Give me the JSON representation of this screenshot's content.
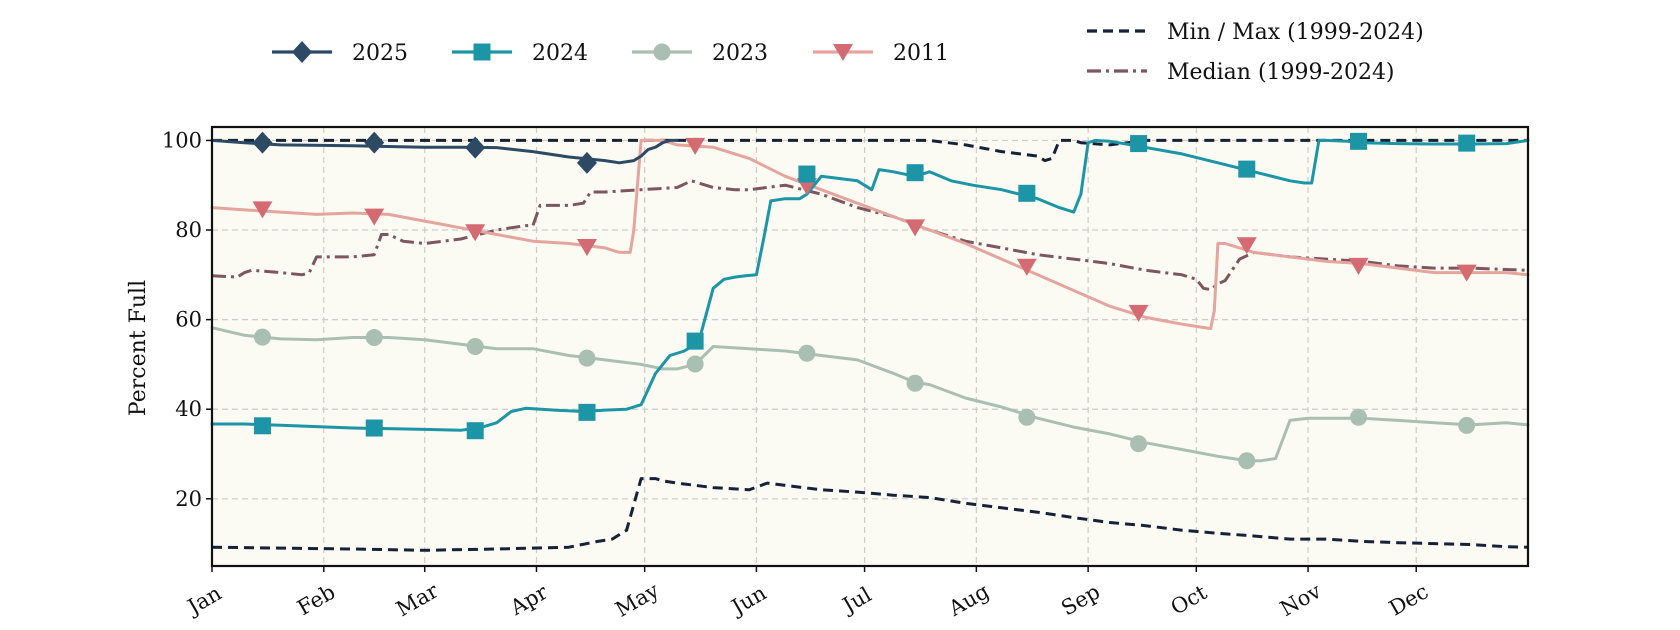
{
  "chart_data": {
    "type": "line",
    "title": "",
    "xlabel": "",
    "ylabel": "Percent Full",
    "x_tick_labels": [
      "Jan",
      "Feb",
      "Mar",
      "Apr",
      "May",
      "Jun",
      "Jul",
      "Aug",
      "Sep",
      "Oct",
      "Nov",
      "Dec"
    ],
    "x_tick_days": [
      1,
      32,
      60,
      91,
      121,
      152,
      182,
      213,
      244,
      274,
      305,
      335
    ],
    "xlim_days": [
      1,
      366
    ],
    "y_ticks": [
      20,
      40,
      60,
      80,
      100
    ],
    "ylim": [
      5,
      103
    ],
    "grid": true,
    "legend_placement": "top",
    "background_fill": "#fbfbf3",
    "series": [
      {
        "name": "2025",
        "color": "#2c4a63",
        "marker": "diamond",
        "style": "solid",
        "x": [
          1,
          10,
          20,
          40,
          60,
          70,
          80,
          90,
          100,
          110,
          114,
          118,
          120,
          122,
          124,
          126,
          128,
          130
        ],
        "y": [
          100,
          99.5,
          99,
          98.8,
          98.5,
          98.5,
          98.4,
          97.5,
          96.3,
          95.5,
          95,
          95.5,
          96.5,
          98,
          98.5,
          99.5,
          100,
          100
        ],
        "marker_x": [
          15,
          46,
          74,
          105
        ],
        "marker_y": [
          99.5,
          99.5,
          98.4,
          95
        ]
      },
      {
        "name": "2024",
        "color": "#1c95a6",
        "marker": "square",
        "style": "solid",
        "x": [
          1,
          10,
          20,
          40,
          60,
          70,
          76,
          80,
          84,
          88,
          96,
          104,
          110,
          116,
          120,
          124,
          128,
          132,
          136,
          140,
          143,
          146,
          149,
          152,
          154,
          156,
          160,
          164,
          166,
          170,
          180,
          184,
          186,
          190,
          196,
          200,
          206,
          212,
          220,
          230,
          236,
          240,
          242,
          244,
          246,
          250,
          256,
          270,
          280,
          290,
          300,
          304,
          306,
          308,
          310,
          316,
          320,
          330,
          340,
          350,
          360,
          366
        ],
        "y": [
          36.7,
          36.7,
          36.4,
          35.8,
          35.5,
          35.3,
          36,
          37,
          39.5,
          40.2,
          39.8,
          39.5,
          39.8,
          40,
          41,
          48,
          52,
          53,
          55,
          67,
          69,
          69.5,
          69.8,
          70,
          78,
          86.5,
          87,
          87,
          88,
          92,
          91,
          89,
          93.5,
          93,
          92,
          93,
          91,
          90,
          89,
          87,
          85,
          84,
          88,
          99.5,
          100,
          99.8,
          99,
          97,
          95,
          93,
          91,
          90.5,
          90.5,
          100,
          100,
          99.8,
          99.5,
          99.3,
          99.2,
          99.2,
          99.3,
          100
        ],
        "marker_x": [
          15,
          46,
          74,
          105,
          135,
          166,
          196,
          227,
          258,
          288,
          319,
          349
        ],
        "marker_y": [
          36.3,
          35.8,
          35.2,
          39.3,
          55.2,
          92.5,
          92.8,
          88.2,
          99.3,
          93.6,
          99.8,
          99.4
        ]
      },
      {
        "name": "2023",
        "color": "#a9bfb2",
        "marker": "circle",
        "style": "solid",
        "x": [
          1,
          10,
          20,
          30,
          40,
          50,
          60,
          70,
          80,
          90,
          100,
          110,
          120,
          126,
          130,
          135,
          140,
          150,
          160,
          170,
          180,
          190,
          196,
          200,
          210,
          220,
          230,
          240,
          250,
          260,
          270,
          280,
          284,
          288,
          292,
          296,
          300,
          305,
          310,
          320,
          330,
          340,
          350,
          360,
          366
        ],
        "y": [
          58.2,
          56.5,
          55.7,
          55.5,
          56,
          56,
          55.5,
          54.5,
          53.5,
          53.5,
          52,
          51,
          50,
          49,
          49,
          50,
          54,
          53.5,
          53,
          52,
          51,
          48,
          46,
          45.5,
          42.5,
          40.5,
          38,
          36,
          34.5,
          32.5,
          31,
          29.5,
          29,
          28.5,
          28.5,
          29,
          37.5,
          38,
          38,
          38,
          37.5,
          37,
          36.5,
          37,
          36.5
        ],
        "marker_x": [
          15,
          46,
          74,
          105,
          135,
          166,
          196,
          227,
          258,
          288,
          319,
          349
        ],
        "marker_y": [
          56.1,
          56,
          54,
          51.4,
          50.1,
          52.5,
          45.8,
          38.2,
          32.3,
          28.5,
          38.2,
          36.4
        ]
      },
      {
        "name": "2011",
        "color": "#e5a59e",
        "marker_color": "#d46a72",
        "marker": "triangle-down",
        "style": "solid",
        "x": [
          1,
          10,
          20,
          30,
          40,
          50,
          60,
          70,
          80,
          90,
          100,
          110,
          114,
          117,
          118,
          120,
          122,
          126,
          130,
          140,
          150,
          160,
          170,
          180,
          190,
          200,
          210,
          220,
          230,
          240,
          250,
          260,
          270,
          278,
          279,
          280,
          282,
          286,
          290,
          300,
          310,
          320,
          330,
          340,
          350,
          360,
          366
        ],
        "y": [
          85,
          84.5,
          84,
          83.5,
          83.8,
          83.5,
          82,
          80.5,
          79,
          77.5,
          77,
          76,
          75,
          75,
          80,
          100,
          100,
          100,
          99,
          98.5,
          96,
          92,
          89,
          86,
          83,
          80,
          77,
          73.5,
          70,
          66.5,
          63,
          60.5,
          59,
          58,
          62,
          77,
          77,
          76,
          75,
          74,
          73,
          72.5,
          71.5,
          70.5,
          70.5,
          70.5,
          70
        ],
        "marker_x": [
          15,
          46,
          74,
          105,
          135,
          166,
          196,
          227,
          258,
          288,
          319,
          349
        ],
        "marker_y": [
          84.6,
          83,
          79.5,
          76.2,
          98.8,
          89.8,
          80.6,
          71.8,
          61.5,
          76.6,
          72,
          70.5
        ]
      },
      {
        "name": "Min / Max (1999-2024)",
        "color": "#152238",
        "style": "dashed",
        "x": [
          1,
          20,
          40,
          60,
          80,
          100,
          108,
          112,
          114,
          116,
          120,
          122,
          124,
          126,
          130,
          140,
          150,
          155,
          160,
          165,
          170,
          180,
          190,
          200,
          210,
          220,
          230,
          240,
          250,
          260,
          270,
          280,
          290,
          300,
          310,
          320,
          330,
          340,
          350,
          360,
          366
        ],
        "y": [
          9.2,
          9,
          8.8,
          8.5,
          8.8,
          9.2,
          10.5,
          11,
          12,
          13,
          24.5,
          24.5,
          24.5,
          24,
          23.5,
          22.5,
          22,
          23.5,
          23,
          22.5,
          22,
          21.5,
          20.8,
          20.3,
          19,
          18,
          17,
          15.8,
          14.7,
          14,
          13,
          12.3,
          11.7,
          11,
          11,
          10.5,
          10.2,
          10,
          9.8,
          9.3,
          9.2
        ],
        "x_upper": [
          1,
          200,
          210,
          220,
          230,
          232,
          234,
          236,
          240,
          242,
          250,
          260,
          366
        ],
        "y_upper": [
          100,
          100,
          99,
          97.5,
          96.5,
          95.5,
          96,
          100,
          100,
          99.5,
          99,
          100,
          100
        ]
      },
      {
        "name": "Median (1999-2024)",
        "color": "#7d5660",
        "style": "dashdot",
        "x": [
          1,
          8,
          10,
          12,
          20,
          26,
          28,
          30,
          40,
          46,
          48,
          50,
          54,
          60,
          70,
          80,
          88,
          90,
          92,
          96,
          100,
          104,
          106,
          110,
          120,
          130,
          134,
          136,
          140,
          146,
          150,
          160,
          170,
          180,
          190,
          200,
          210,
          220,
          230,
          240,
          250,
          260,
          270,
          274,
          276,
          278,
          280,
          282,
          286,
          290,
          300,
          310,
          320,
          330,
          340,
          350,
          360,
          366
        ],
        "y": [
          69.8,
          69.5,
          70.5,
          71,
          70.5,
          70,
          70.5,
          74,
          74,
          74.5,
          79,
          79,
          77.5,
          77,
          78,
          80,
          81,
          81,
          85.5,
          85.5,
          85.5,
          86,
          88.5,
          88.5,
          89,
          89.5,
          91,
          90.5,
          89.5,
          89,
          89,
          90,
          88,
          85,
          83,
          80,
          77.5,
          76,
          74.5,
          73.5,
          72.5,
          71,
          70,
          69,
          67,
          66.7,
          68,
          68.7,
          73.5,
          75,
          74,
          73.5,
          73,
          72,
          71.5,
          71.5,
          71.2,
          71
        ]
      }
    ],
    "legend": [
      {
        "label": "2025",
        "series": 0
      },
      {
        "label": "2024",
        "series": 1
      },
      {
        "label": "2023",
        "series": 2
      },
      {
        "label": "2011",
        "series": 3
      },
      {
        "label": "Min / Max (1999-2024)",
        "series": 4
      },
      {
        "label": "Median (1999-2024)",
        "series": 5
      }
    ]
  }
}
